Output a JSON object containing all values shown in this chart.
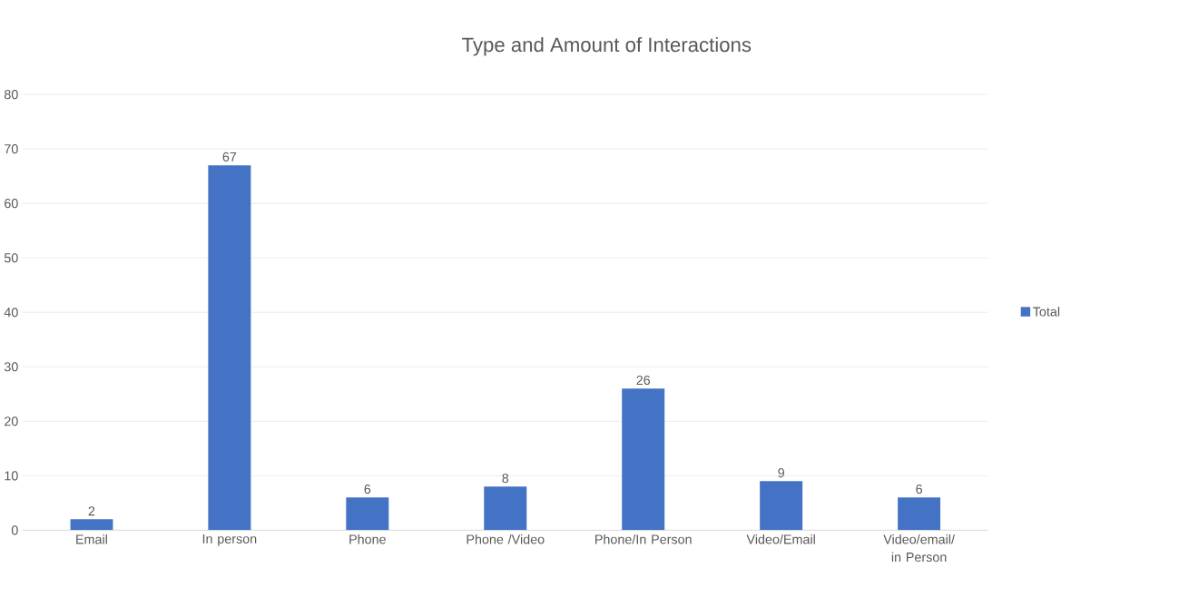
{
  "chart_data": {
    "type": "bar",
    "title": "Type and Amount of Interactions",
    "categories": [
      "Email",
      "In person",
      "Phone",
      "Phone /Video",
      "Phone/In Person",
      "Video/Email",
      "Video/email/ in Person"
    ],
    "series": [
      {
        "name": "Total",
        "color": "#4472c4",
        "values": [
          2,
          67,
          6,
          8,
          26,
          9,
          6
        ]
      }
    ],
    "ylim": [
      0,
      80
    ],
    "yticks": [
      0,
      10,
      20,
      30,
      40,
      50,
      60,
      70,
      80
    ],
    "grid": "y",
    "legend": "right",
    "data_labels": true
  }
}
